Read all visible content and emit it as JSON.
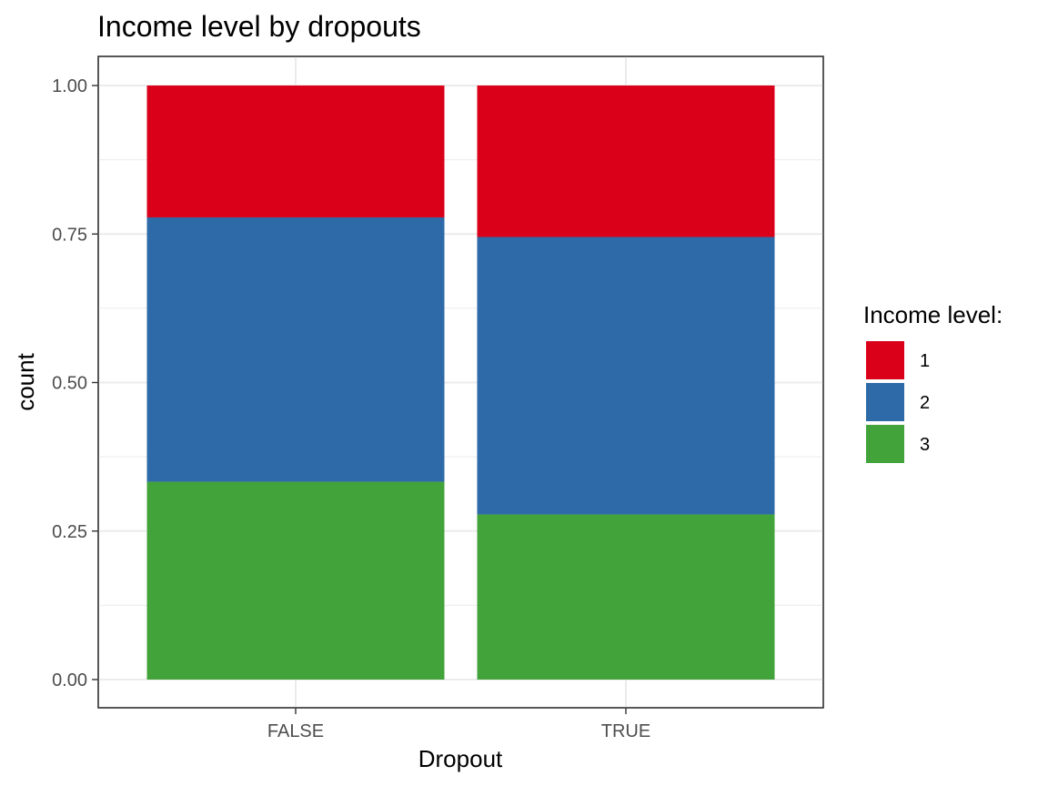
{
  "chart_data": {
    "type": "bar",
    "stacked": true,
    "title": "Income level by dropouts",
    "xlabel": "Dropout",
    "ylabel": "count",
    "categories": [
      "FALSE",
      "TRUE"
    ],
    "ylim": [
      0,
      1
    ],
    "yticks": [
      "0.00",
      "0.25",
      "0.50",
      "0.75",
      "1.00"
    ],
    "ytick_values": [
      0,
      0.25,
      0.5,
      0.75,
      1.0
    ],
    "grid": true,
    "legend_title": "Income level:",
    "legend_position": "right",
    "series": [
      {
        "name": "3",
        "values": [
          0.333,
          0.278
        ],
        "color": "#43A33B"
      },
      {
        "name": "2",
        "values": [
          0.445,
          0.467
        ],
        "color": "#2E6AA8"
      },
      {
        "name": "1",
        "values": [
          0.222,
          0.255
        ],
        "color": "#DA001A"
      }
    ],
    "legend_order": [
      "1",
      "2",
      "3"
    ]
  }
}
